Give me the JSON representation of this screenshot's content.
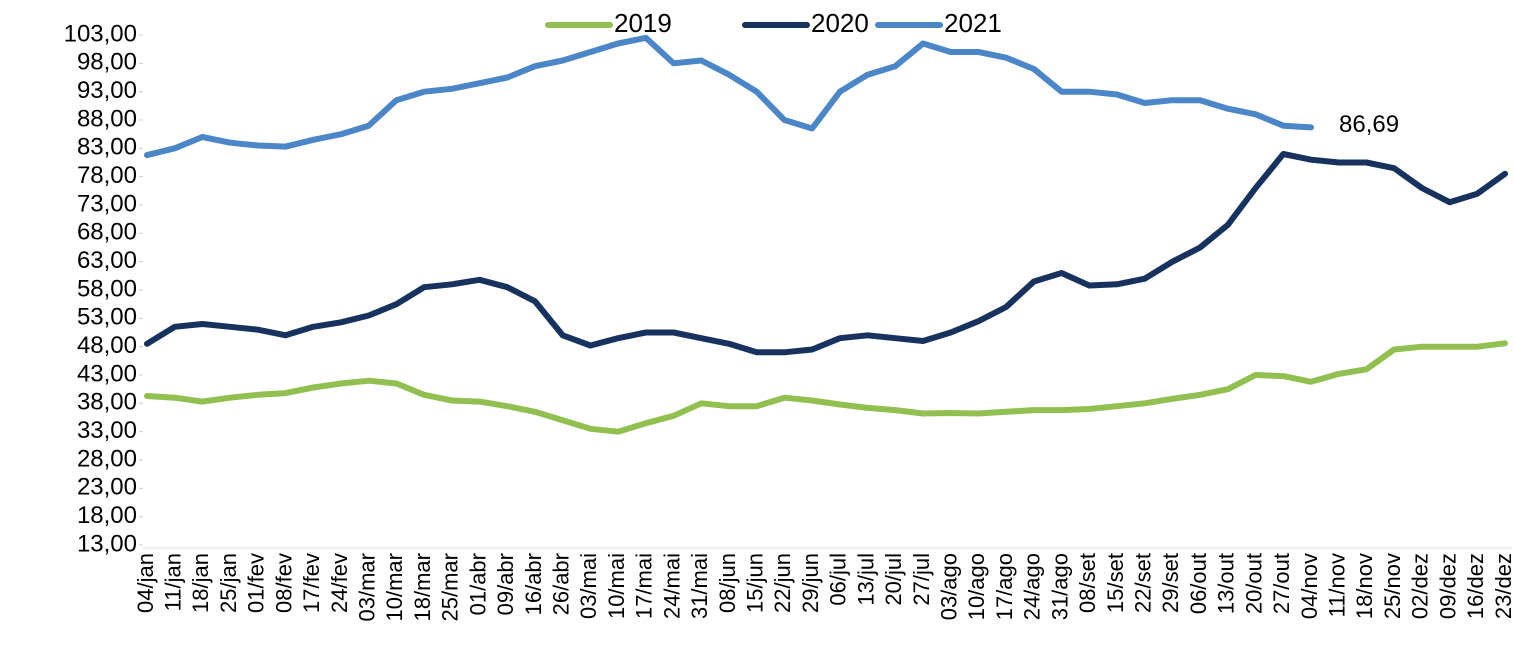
{
  "chart_data": {
    "type": "line",
    "categories": [
      "04/jan",
      "11/jan",
      "18/jan",
      "25/jan",
      "01/fev",
      "08/fev",
      "17/fev",
      "24/fev",
      "03/mar",
      "10/mar",
      "18/mar",
      "25/mar",
      "01/abr",
      "09/abr",
      "16/abr",
      "26/abr",
      "03/mai",
      "10/mai",
      "17/mai",
      "24/mai",
      "31/mai",
      "08/jun",
      "15/jun",
      "22/jun",
      "29/jun",
      "06/jul",
      "13/jul",
      "20/jul",
      "27/jul",
      "03/ago",
      "10/ago",
      "17/ago",
      "24/ago",
      "31/ago",
      "08/set",
      "15/set",
      "22/set",
      "29/set",
      "06/out",
      "13/out",
      "20/out",
      "27/out",
      "04/nov",
      "11/nov",
      "18/nov",
      "25/nov",
      "02/dez",
      "09/dez",
      "16/dez",
      "23/dez"
    ],
    "series": [
      {
        "name": "2019",
        "color": "#92c050",
        "values": [
          39.3,
          39,
          38.3,
          39,
          39.5,
          39.8,
          40.8,
          41.5,
          42,
          41.5,
          39.5,
          38.5,
          38.3,
          37.5,
          36.5,
          35,
          33.5,
          33,
          34.5,
          35.8,
          38,
          37.5,
          37.5,
          39,
          38.5,
          37.8,
          37.2,
          36.8,
          36.2,
          36.3,
          36.2,
          36.5,
          36.8,
          36.8,
          37,
          37.5,
          38,
          38.8,
          39.5,
          40.5,
          43,
          42.8,
          41.8,
          43.2,
          44,
          47.5,
          48,
          48,
          48,
          48.6
        ]
      },
      {
        "name": "2020",
        "color": "#17325e",
        "values": [
          48.5,
          51.5,
          52,
          51.5,
          51,
          50,
          51.5,
          52.3,
          53.5,
          55.5,
          58.5,
          59,
          59.8,
          58.5,
          56,
          50,
          48.2,
          49.5,
          50.5,
          50.5,
          49.5,
          48.5,
          47,
          47,
          47.5,
          49.5,
          50,
          49.5,
          49,
          50.5,
          52.5,
          55,
          59.5,
          61,
          58.8,
          59,
          60,
          63,
          65.5,
          69.5,
          76,
          82,
          81,
          80.5,
          80.5,
          79.5,
          76,
          73.5,
          75,
          78.5
        ]
      },
      {
        "name": "2021",
        "color": "#4a86c8",
        "values": [
          81.8,
          83,
          85,
          84,
          83.5,
          83.3,
          84.5,
          85.5,
          87,
          91.5,
          93,
          93.5,
          94.5,
          95.5,
          97.5,
          98.5,
          100,
          101.5,
          102.5,
          98,
          98.5,
          96,
          93,
          88,
          86.5,
          93,
          96,
          97.5,
          101.5,
          100,
          100,
          99,
          97,
          93,
          93,
          92.5,
          91,
          91.5,
          91.5,
          90,
          89,
          87,
          86.69,
          null,
          null,
          null,
          null,
          null,
          null,
          null
        ],
        "value_labels": [
          null,
          null,
          null,
          null,
          null,
          null,
          null,
          null,
          null,
          null,
          null,
          null,
          null,
          null,
          null,
          null,
          null,
          null,
          null,
          null,
          null,
          null,
          null,
          null,
          null,
          null,
          null,
          null,
          null,
          null,
          null,
          null,
          null,
          null,
          null,
          null,
          null,
          null,
          null,
          null,
          null,
          null,
          "86,69",
          null,
          null,
          null,
          null,
          null,
          null,
          null
        ]
      }
    ],
    "ylim": [
      13,
      103
    ],
    "yticks": [
      {
        "value": 13,
        "label": "13,00"
      },
      {
        "value": 18,
        "label": "18,00"
      },
      {
        "value": 23,
        "label": "23,00"
      },
      {
        "value": 28,
        "label": "28,00"
      },
      {
        "value": 33,
        "label": "33,00"
      },
      {
        "value": 38,
        "label": "38,00"
      },
      {
        "value": 43,
        "label": "43,00"
      },
      {
        "value": 48,
        "label": "48,00"
      },
      {
        "value": 53,
        "label": "53,00"
      },
      {
        "value": 58,
        "label": "58,00"
      },
      {
        "value": 63,
        "label": "63,00"
      },
      {
        "value": 68,
        "label": "68,00"
      },
      {
        "value": 73,
        "label": "73,00"
      },
      {
        "value": 78,
        "label": "78,00"
      },
      {
        "value": 83,
        "label": "83,00"
      },
      {
        "value": 88,
        "label": "88,00"
      },
      {
        "value": 93,
        "label": "93,00"
      },
      {
        "value": 98,
        "label": "98,00"
      },
      {
        "value": 103,
        "label": "103,00"
      }
    ],
    "legend": "top"
  }
}
